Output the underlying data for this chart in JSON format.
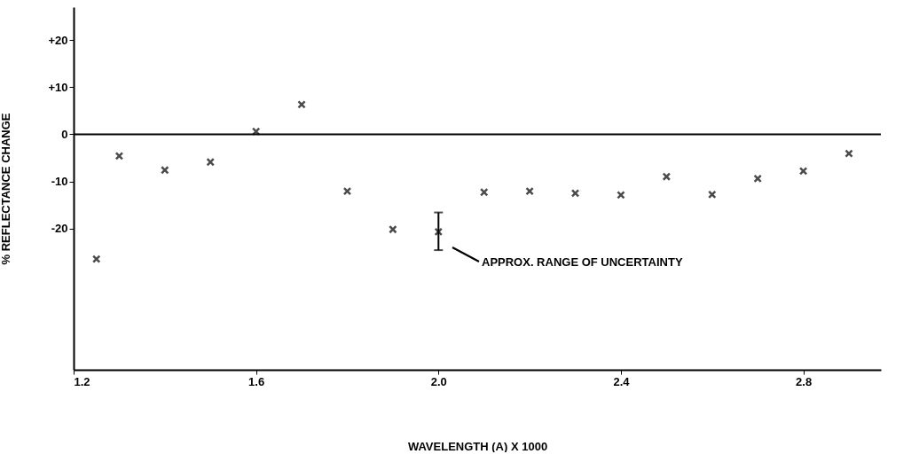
{
  "chart_data": {
    "type": "scatter",
    "xlabel": "WAVELENGTH (A) X 1000",
    "ylabel": "% REFLECTANCE CHANGE",
    "x": [
      1.25,
      1.3,
      1.4,
      1.5,
      1.6,
      1.7,
      1.8,
      1.9,
      2.0,
      2.1,
      2.2,
      2.3,
      2.4,
      2.5,
      2.6,
      2.7,
      2.8,
      2.9
    ],
    "values": [
      -26.5,
      -4.6,
      -7.6,
      -5.9,
      0.6,
      6.3,
      -12.1,
      -20.2,
      -20.7,
      -12.3,
      -12.1,
      -12.5,
      -12.9,
      -9.0,
      -12.8,
      -9.4,
      -7.8,
      -4.1
    ],
    "errors": [
      null,
      null,
      null,
      null,
      null,
      null,
      null,
      null,
      [
        -24.6,
        -16.6
      ],
      null,
      null,
      null,
      null,
      null,
      null,
      null,
      null,
      null
    ],
    "color": "#000000",
    "marker": "cross",
    "grid": false,
    "xlim": [
      1.2,
      2.97
    ],
    "ylim": [
      -50,
      27
    ],
    "xticks": [
      1.2,
      1.6,
      {
        "value": 2.0,
        "label": "2.0"
      },
      2.4,
      2.8
    ],
    "yticks": [
      {
        "value": 20,
        "label": "+20"
      },
      {
        "value": 10,
        "label": "+10"
      },
      0,
      -10,
      -20
    ],
    "ref_lines": [
      {
        "axis": "y",
        "value": 0,
        "label": null
      }
    ],
    "annotations": [
      "APPROX. RANGE OF UNCERTAINTY"
    ]
  }
}
